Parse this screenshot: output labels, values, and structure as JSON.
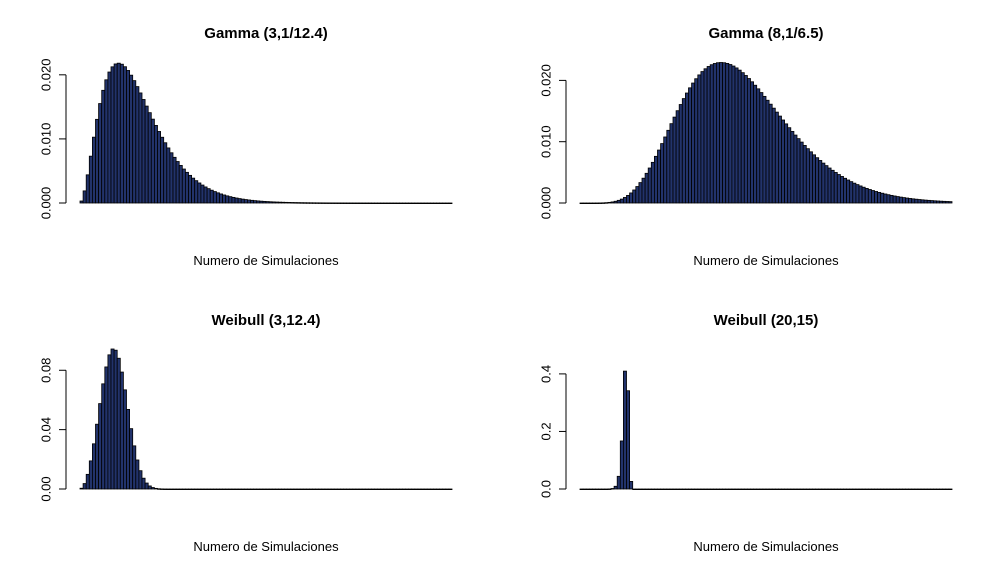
{
  "colors": {
    "bar_fill": "#22336b",
    "bar_stroke": "#000000",
    "background": "#ffffff"
  },
  "chart_data": [
    {
      "type": "bar",
      "title": "Gamma (3,1/12.4)",
      "xlabel": "Numero de Simulaciones",
      "ylabel": "",
      "ylim": [
        0,
        0.022
      ],
      "yticks": [
        "0.000",
        "0.010",
        "0.020"
      ],
      "ytick_values": [
        0,
        0.01,
        0.02
      ],
      "distribution": {
        "family": "gamma",
        "shape": 3,
        "scale": 12.4
      },
      "x_range": [
        0,
        240
      ],
      "bins": 120
    },
    {
      "type": "bar",
      "title": "Gamma (8,1/6.5)",
      "xlabel": "Numero de Simulaciones",
      "ylabel": "",
      "ylim": [
        0,
        0.023
      ],
      "yticks": [
        "0.000",
        "0.010",
        "0.020"
      ],
      "ytick_values": [
        0,
        0.01,
        0.02
      ],
      "distribution": {
        "family": "gamma",
        "shape": 8,
        "scale": 6.5
      },
      "x_range": [
        0,
        120
      ],
      "bins": 120
    },
    {
      "type": "bar",
      "title": "Weibull (3,12.4)",
      "xlabel": "Numero de Simulaciones",
      "ylabel": "",
      "ylim": [
        0,
        0.095
      ],
      "yticks": [
        "0.00",
        "0.04",
        "0.08"
      ],
      "ytick_values": [
        0,
        0.04,
        0.08
      ],
      "distribution": {
        "family": "weibull",
        "shape": 3,
        "scale": 12.4
      },
      "x_range": [
        0,
        120
      ],
      "bins": 120
    },
    {
      "type": "bar",
      "title": "Weibull (20,15)",
      "xlabel": "Numero de Simulaciones",
      "ylabel": "",
      "ylim": [
        0,
        0.49
      ],
      "yticks": [
        "0.0",
        "0.2",
        "0.4"
      ],
      "ytick_values": [
        0,
        0.2,
        0.4
      ],
      "distribution": {
        "family": "weibull",
        "shape": 20,
        "scale": 15
      },
      "x_range": [
        0,
        120
      ],
      "bins": 120
    }
  ]
}
